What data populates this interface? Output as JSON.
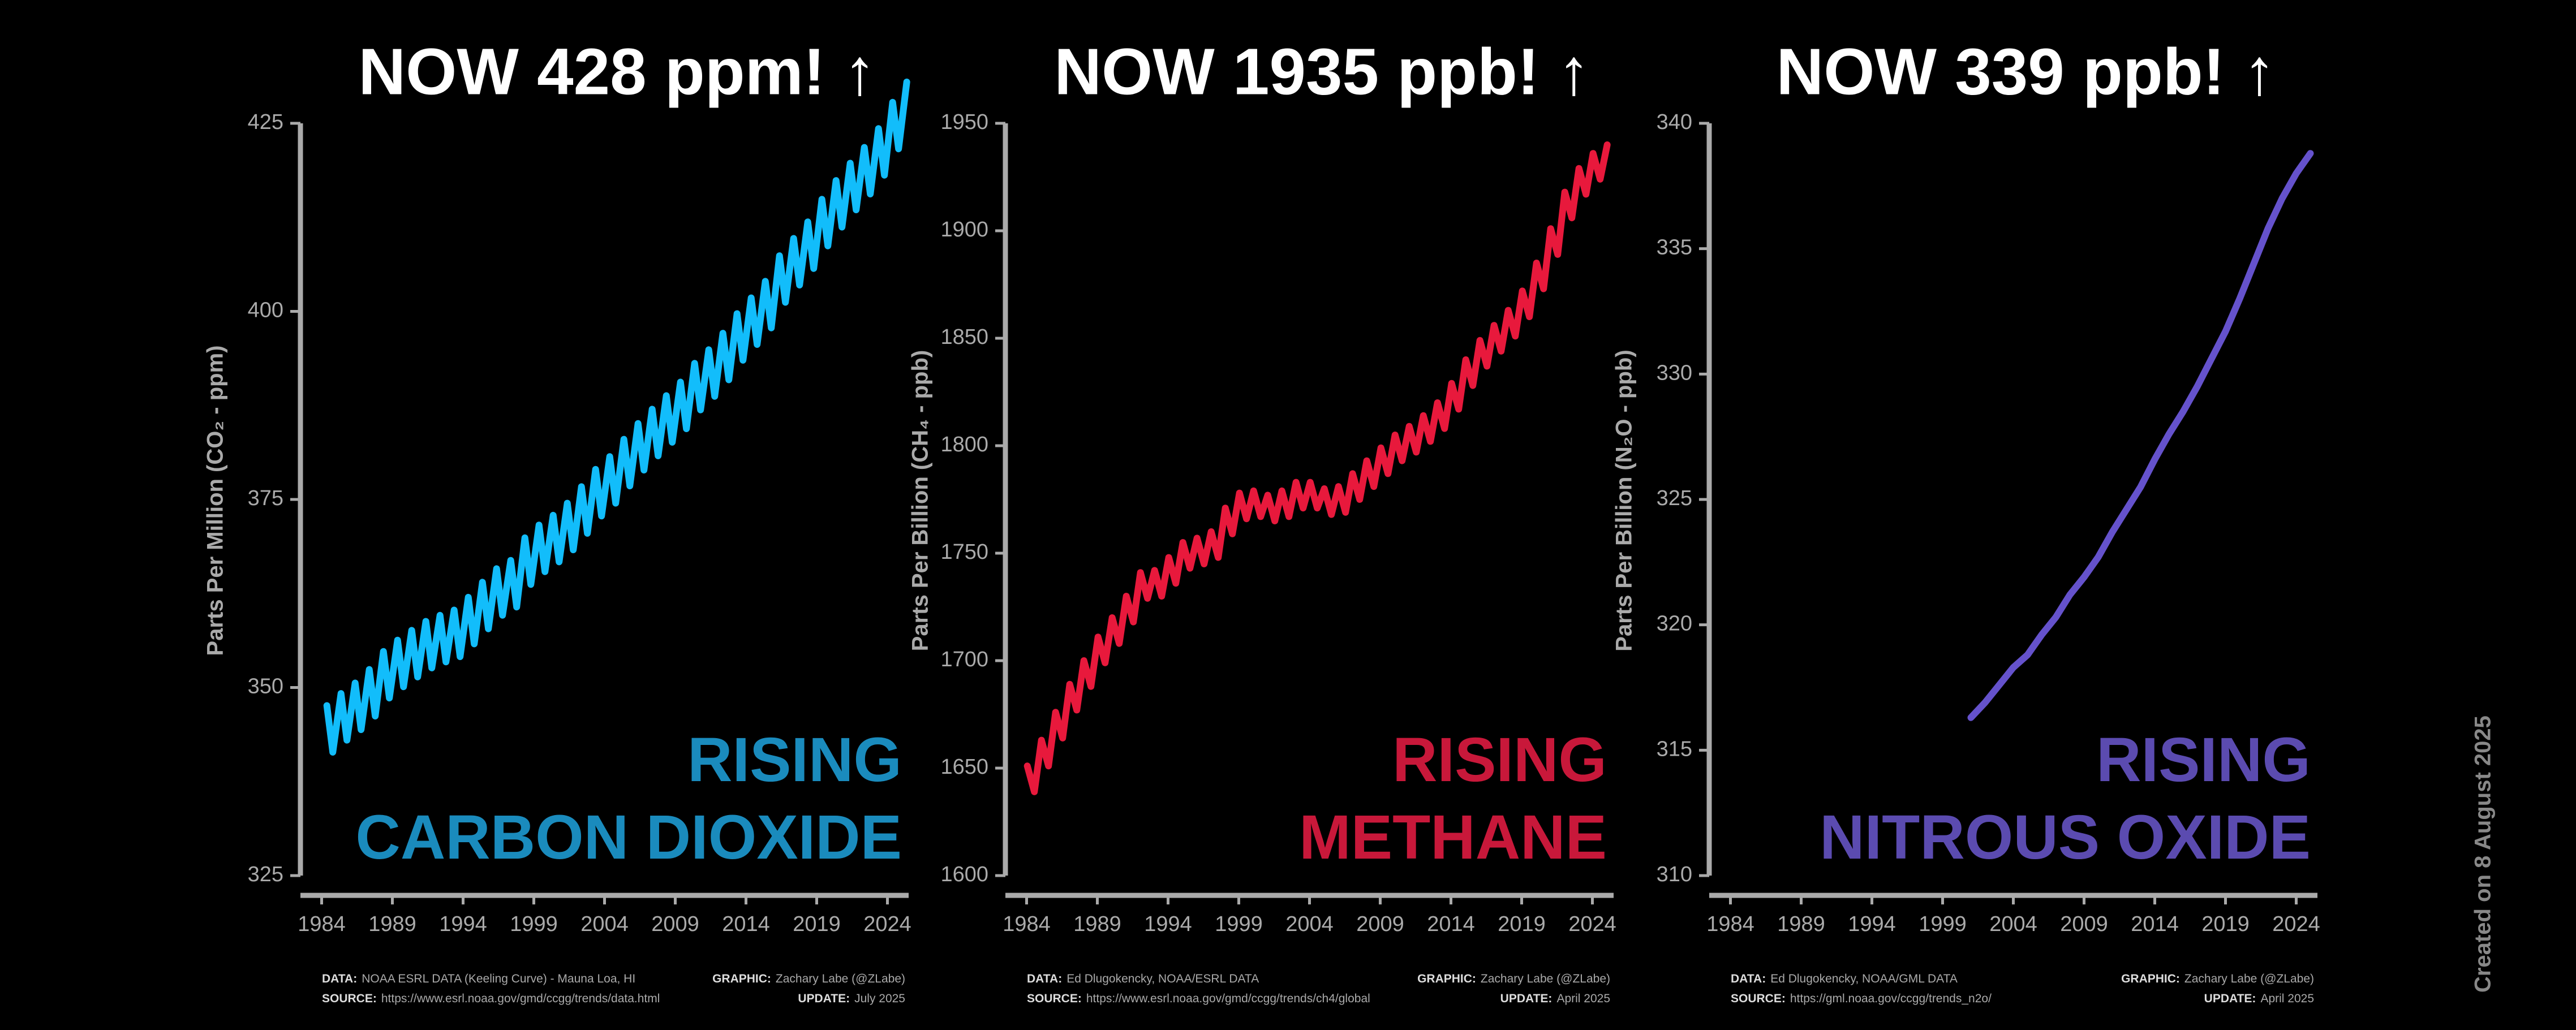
{
  "chart_data": [
    {
      "type": "line",
      "title": "NOW 428 ppm! ↑",
      "ylabel": "Parts Per Million (CO₂ - ppm)",
      "annotation": [
        "RISING",
        "CARBON DIOXIDE"
      ],
      "annotation_color": "#1a8bbd",
      "color": "#12bdfb",
      "x": [
        1984.37,
        1984.79,
        1985.37,
        1985.79,
        1986.37,
        1986.79,
        1987.37,
        1987.79,
        1988.37,
        1988.79,
        1989.37,
        1989.79,
        1990.37,
        1990.79,
        1991.37,
        1991.79,
        1992.37,
        1992.79,
        1993.37,
        1993.79,
        1994.37,
        1994.79,
        1995.37,
        1995.79,
        1996.37,
        1996.79,
        1997.37,
        1997.79,
        1998.37,
        1998.79,
        1999.37,
        1999.79,
        2000.37,
        2000.79,
        2001.37,
        2001.79,
        2002.37,
        2002.79,
        2003.37,
        2003.79,
        2004.37,
        2004.79,
        2005.37,
        2005.79,
        2006.37,
        2006.79,
        2007.37,
        2007.79,
        2008.37,
        2008.79,
        2009.37,
        2009.79,
        2010.37,
        2010.79,
        2011.37,
        2011.79,
        2012.37,
        2012.79,
        2013.37,
        2013.79,
        2014.37,
        2014.79,
        2015.37,
        2015.79,
        2016.37,
        2016.79,
        2017.37,
        2017.79,
        2018.37,
        2018.79,
        2019.37,
        2019.79,
        2020.37,
        2020.79,
        2021.37,
        2021.79,
        2022.37,
        2022.79,
        2023.37,
        2023.79,
        2024.37,
        2024.79,
        2025.37
      ],
      "values": [
        347.6,
        341.4,
        349.2,
        343.0,
        350.6,
        344.4,
        352.4,
        346.2,
        354.8,
        348.6,
        356.3,
        350.1,
        357.6,
        351.4,
        358.8,
        352.6,
        359.6,
        353.4,
        360.3,
        354.1,
        362.0,
        355.8,
        364.0,
        357.8,
        365.8,
        359.6,
        366.9,
        360.7,
        369.9,
        363.7,
        371.6,
        365.4,
        372.9,
        366.7,
        374.5,
        368.3,
        376.7,
        370.5,
        379.0,
        372.8,
        380.7,
        374.5,
        383.0,
        376.8,
        385.1,
        378.9,
        387.0,
        380.8,
        388.8,
        382.6,
        390.6,
        384.4,
        393.1,
        386.9,
        394.9,
        388.7,
        397.1,
        390.9,
        399.7,
        393.5,
        401.8,
        395.6,
        404.0,
        397.8,
        407.4,
        401.2,
        409.7,
        403.5,
        411.9,
        405.7,
        414.9,
        408.7,
        417.4,
        411.2,
        419.7,
        413.5,
        421.8,
        415.6,
        424.3,
        418.1,
        427.8,
        421.6,
        430.5
      ],
      "xlim": [
        1982.5,
        2025.5
      ],
      "xticks": [
        1984,
        1989,
        1994,
        1999,
        2004,
        2009,
        2014,
        2019,
        2024
      ],
      "ylim": [
        325,
        425
      ],
      "yticks": [
        325,
        350,
        375,
        400,
        425
      ],
      "footer": {
        "data_label": "DATA:",
        "data": "NOAA ESRL DATA (Keeling Curve) - Mauna Loa, HI",
        "source_label": "SOURCE:",
        "source": "https://www.esrl.noaa.gov/gmd/ccgg/trends/data.html",
        "graphic_label": "GRAPHIC:",
        "graphic": "Zachary Labe (@ZLabe)",
        "update_label": "UPDATE:",
        "update": "July 2025"
      }
    },
    {
      "type": "line",
      "title": "NOW 1935 ppb! ↑",
      "ylabel": "Parts Per Billion (CH₄ - ppb)",
      "annotation": [
        "RISING",
        "METHANE"
      ],
      "annotation_color": "#c8183a",
      "color": "#e8193c",
      "x": [
        1984.05,
        1984.55,
        1985.05,
        1985.55,
        1986.05,
        1986.55,
        1987.05,
        1987.55,
        1988.05,
        1988.55,
        1989.05,
        1989.55,
        1990.05,
        1990.55,
        1991.05,
        1991.55,
        1992.05,
        1992.55,
        1993.05,
        1993.55,
        1994.05,
        1994.55,
        1995.05,
        1995.55,
        1996.05,
        1996.55,
        1997.05,
        1997.55,
        1998.05,
        1998.55,
        1999.05,
        1999.55,
        2000.05,
        2000.55,
        2001.05,
        2001.55,
        2002.05,
        2002.55,
        2003.05,
        2003.55,
        2004.05,
        2004.55,
        2005.05,
        2005.55,
        2006.05,
        2006.55,
        2007.05,
        2007.55,
        2008.05,
        2008.55,
        2009.05,
        2009.55,
        2010.05,
        2010.55,
        2011.05,
        2011.55,
        2012.05,
        2012.55,
        2013.05,
        2013.55,
        2014.05,
        2014.55,
        2015.05,
        2015.55,
        2016.05,
        2016.55,
        2017.05,
        2017.55,
        2018.05,
        2018.55,
        2019.05,
        2019.55,
        2020.05,
        2020.55,
        2021.05,
        2021.55,
        2022.05,
        2022.55,
        2023.05,
        2023.55,
        2024.05,
        2024.55,
        2025.05
      ],
      "values": [
        1651,
        1639,
        1663,
        1651,
        1676,
        1664,
        1689,
        1677,
        1700,
        1688,
        1711,
        1699,
        1720,
        1708,
        1730,
        1718,
        1741,
        1729,
        1742,
        1730,
        1748,
        1736,
        1755,
        1743,
        1757,
        1745,
        1760,
        1748,
        1771,
        1759,
        1778,
        1766,
        1779,
        1767,
        1777,
        1765,
        1779,
        1767,
        1783,
        1771,
        1783,
        1771,
        1780,
        1768,
        1781,
        1769,
        1787,
        1775,
        1793,
        1781,
        1799,
        1787,
        1805,
        1793,
        1809,
        1797,
        1814,
        1802,
        1820,
        1808,
        1829,
        1817,
        1840,
        1828,
        1849,
        1837,
        1856,
        1844,
        1863,
        1851,
        1872,
        1860,
        1885,
        1873,
        1901,
        1889,
        1918,
        1906,
        1929,
        1917,
        1936,
        1924,
        1940
      ],
      "xlim": [
        1982.5,
        2025.5
      ],
      "xticks": [
        1984,
        1989,
        1994,
        1999,
        2004,
        2009,
        2014,
        2019,
        2024
      ],
      "ylim": [
        1600,
        1950
      ],
      "yticks": [
        1600,
        1650,
        1700,
        1750,
        1800,
        1850,
        1900,
        1950
      ],
      "footer": {
        "data_label": "DATA:",
        "data": "Ed Dlugokencky, NOAA/ESRL DATA",
        "source_label": "SOURCE:",
        "source": "https://www.esrl.noaa.gov/gmd/ccgg/trends/ch4/global",
        "graphic_label": "GRAPHIC:",
        "graphic": "Zachary Labe (@ZLabe)",
        "update_label": "UPDATE:",
        "update": "April 2025"
      }
    },
    {
      "type": "line",
      "title": "NOW 339 ppb! ↑",
      "ylabel": "Parts Per Billion (N₂O - ppb)",
      "annotation": [
        "RISING",
        "NITROUS OXIDE"
      ],
      "annotation_color": "#5b4bb0",
      "color": "#6552cc",
      "x": [
        2001,
        2002,
        2003,
        2004,
        2005,
        2006,
        2007,
        2008,
        2009,
        2010,
        2011,
        2012,
        2013,
        2014,
        2015,
        2016,
        2017,
        2018,
        2019,
        2020,
        2021,
        2022,
        2023,
        2024,
        2025
      ],
      "values": [
        316.3,
        316.9,
        317.6,
        318.3,
        318.8,
        319.6,
        320.3,
        321.2,
        321.9,
        322.7,
        323.7,
        324.6,
        325.5,
        326.6,
        327.6,
        328.5,
        329.5,
        330.6,
        331.7,
        333.0,
        334.4,
        335.8,
        337.0,
        338.0,
        338.8
      ],
      "xlim": [
        1982.5,
        2025.5
      ],
      "xticks": [
        1984,
        1989,
        1994,
        1999,
        2004,
        2009,
        2014,
        2019,
        2024
      ],
      "ylim": [
        310,
        340
      ],
      "yticks": [
        310,
        315,
        320,
        325,
        330,
        335,
        340
      ],
      "footer": {
        "data_label": "DATA:",
        "data": "Ed Dlugokencky, NOAA/GML DATA",
        "source_label": "SOURCE:",
        "source": "https://gml.noaa.gov/ccgg/trends_n2o/",
        "graphic_label": "GRAPHIC:",
        "graphic": "Zachary Labe (@ZLabe)",
        "update_label": "UPDATE:",
        "update": "April 2025"
      }
    }
  ],
  "credit": "Created on 8 August 2025"
}
